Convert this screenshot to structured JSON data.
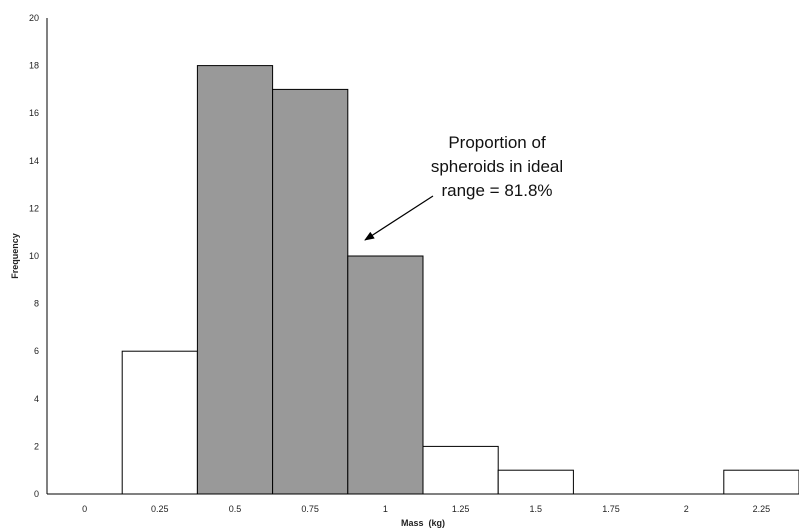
{
  "chart_data": {
    "type": "bar",
    "title": "",
    "xlabel": "Mass  (kg)",
    "ylabel": "Frequency",
    "categories": [
      "0",
      "0.25",
      "0.5",
      "0.75",
      "1",
      "1.25",
      "1.5",
      "1.75",
      "2",
      "2.25"
    ],
    "values": [
      0,
      6,
      18,
      17,
      10,
      2,
      1,
      0,
      0,
      1
    ],
    "highlighted": [
      false,
      false,
      true,
      true,
      true,
      false,
      false,
      false,
      false,
      false
    ],
    "ylim": [
      0,
      20
    ],
    "yticks": [
      0,
      2,
      4,
      6,
      8,
      10,
      12,
      14,
      16,
      18,
      20
    ],
    "grid": false,
    "legend": "none",
    "colors": {
      "highlight": "#999999",
      "normal": "#ffffff",
      "outline": "#000000"
    },
    "annotation": {
      "lines": [
        "Proportion of",
        "spheroids in ideal",
        "range = 81.8%"
      ],
      "target_category": "1"
    }
  }
}
